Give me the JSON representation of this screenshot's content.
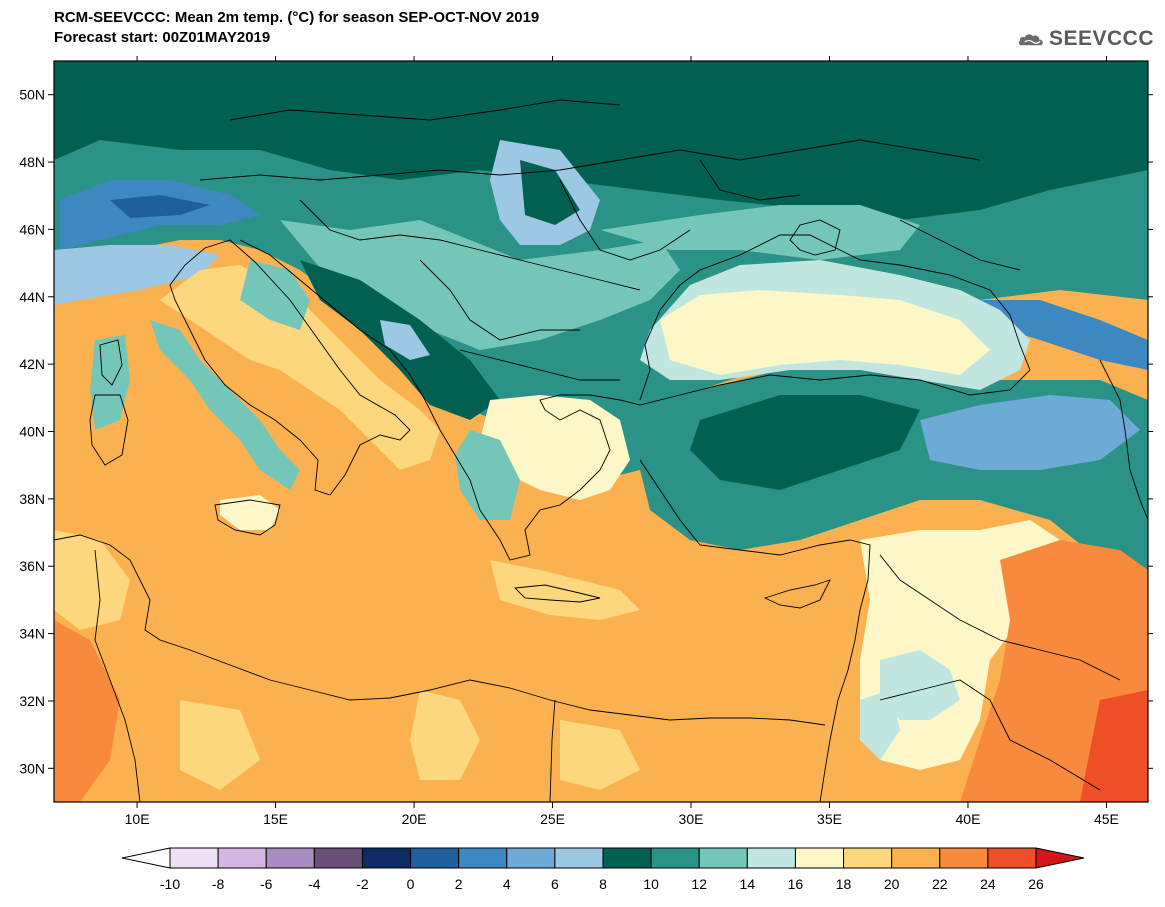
{
  "header": {
    "title_line1": "RCM-SEEVCCC: Mean 2m temp. (°C) for season SEP-OCT-NOV 2019",
    "title_line2": "Forecast start: 00Z01MAY2019"
  },
  "logo": {
    "text": "SEEVCCC",
    "icon": "cloud-icon"
  },
  "map": {
    "lon_ticks": [
      "10E",
      "15E",
      "20E",
      "25E",
      "30E",
      "35E",
      "40E",
      "45E"
    ],
    "lat_ticks": [
      "50N",
      "48N",
      "46N",
      "44N",
      "42N",
      "40N",
      "38N",
      "36N",
      "34N",
      "32N",
      "30N"
    ],
    "lon_range": [
      7,
      46.5
    ],
    "lat_range": [
      29,
      51
    ]
  },
  "colorbar": {
    "labels": [
      "-10",
      "-8",
      "-6",
      "-4",
      "-2",
      "0",
      "2",
      "4",
      "6",
      "8",
      "10",
      "12",
      "14",
      "16",
      "18",
      "20",
      "22",
      "24",
      "26"
    ],
    "colors": [
      "#ffffff",
      "#ede0f5",
      "#d5b5e3",
      "#a88bc0",
      "#6a4f78",
      "#0d2c63",
      "#1e5f9e",
      "#3e88c2",
      "#6dabd6",
      "#9dc8e3",
      "#006152",
      "#2a9286",
      "#74c7b8",
      "#c0e6df",
      "#fdf6c7",
      "#fcd77d",
      "#fbb14f",
      "#f78a3c",
      "#ee4f26",
      "#d6151b"
    ]
  }
}
